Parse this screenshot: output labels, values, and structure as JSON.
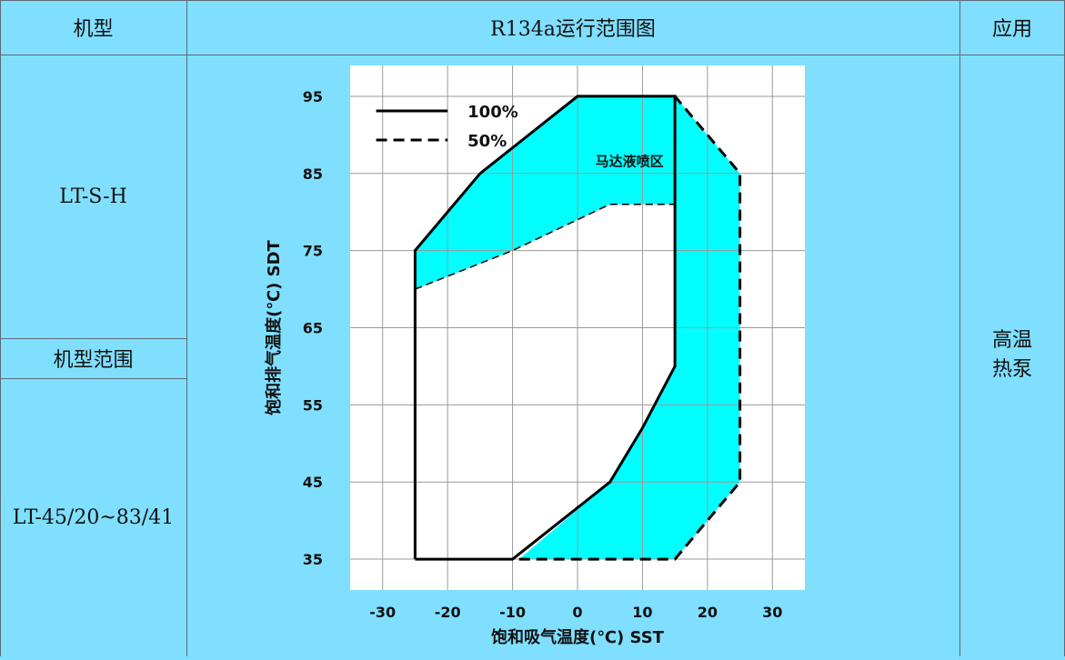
{
  "table": {
    "col1_header": "机型",
    "col2_header": "R134a运行范围图",
    "col3_header": "应用",
    "model": "LT-S-H",
    "range_label": "机型范围",
    "range_value": "LT-45/20~83/41",
    "application": "高温\n热泵"
  },
  "chart_data": {
    "type": "area",
    "title": "R134a运行范围图",
    "xlabel": "饱和吸气温度(℃) SST",
    "ylabel": "饱和排气温度(℃) SDT",
    "xlim": [
      -35,
      35
    ],
    "ylim": [
      31,
      99
    ],
    "xticks": [
      -30,
      -20,
      -10,
      0,
      10,
      20,
      30
    ],
    "yticks": [
      35,
      45,
      55,
      65,
      75,
      85,
      95
    ],
    "grid": true,
    "legend_position": "top-left",
    "annotation": "马达液喷区",
    "colors": {
      "fill": "#00ffff",
      "line": "#000000",
      "plot_bg": "#ffffff"
    },
    "series": [
      {
        "name": "100%",
        "style": "solid",
        "points": [
          [
            -25,
            35
          ],
          [
            -25,
            75
          ],
          [
            -15,
            85
          ],
          [
            0,
            95
          ],
          [
            15,
            95
          ],
          [
            15,
            60
          ],
          [
            10,
            52
          ],
          [
            5,
            45
          ],
          [
            -10,
            35
          ],
          [
            -25,
            35
          ]
        ]
      },
      {
        "name": "50%",
        "style": "dashed",
        "points": [
          [
            -9,
            35
          ],
          [
            15,
            35
          ],
          [
            25,
            45
          ],
          [
            25,
            85
          ],
          [
            15,
            95
          ]
        ]
      }
    ],
    "boundaries": [
      {
        "style": "dashed",
        "points": [
          [
            -25,
            70
          ],
          [
            -10,
            75
          ],
          [
            5,
            81
          ],
          [
            15,
            81
          ]
        ]
      }
    ],
    "shaded_regions": [
      {
        "points": [
          [
            -25,
            75
          ],
          [
            -15,
            85
          ],
          [
            0,
            95
          ],
          [
            15,
            95
          ],
          [
            15,
            81
          ],
          [
            5,
            81
          ],
          [
            -10,
            75
          ],
          [
            -25,
            70
          ]
        ]
      },
      {
        "points": [
          [
            15,
            95
          ],
          [
            25,
            85
          ],
          [
            25,
            45
          ],
          [
            15,
            35
          ],
          [
            -9,
            35
          ],
          [
            5,
            45
          ],
          [
            10,
            52
          ],
          [
            15,
            60
          ]
        ]
      }
    ]
  }
}
